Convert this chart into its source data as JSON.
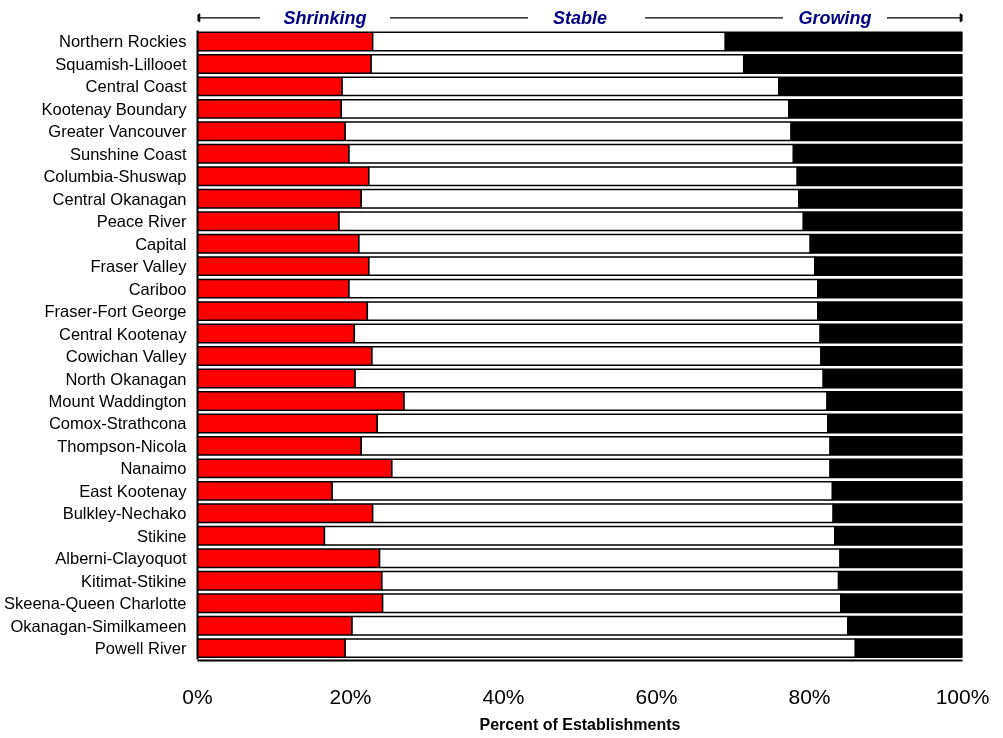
{
  "chart_data": {
    "type": "bar",
    "orientation": "horizontal",
    "stacked": true,
    "xlabel": "Percent of Establishments",
    "categories": [
      "Northern Rockies",
      "Squamish-Lillooet",
      "Central Coast",
      "Kootenay Boundary",
      "Greater Vancouver",
      "Sunshine Coast",
      "Columbia-Shuswap",
      "Central Okanagan",
      "Peace River",
      "Capital",
      "Fraser Valley",
      "Cariboo",
      "Fraser-Fort George",
      "Central Kootenay",
      "Cowichan Valley",
      "North Okanagan",
      "Mount Waddington",
      "Comox-Strathcona",
      "Thompson-Nicola",
      "Nanaimo",
      "East Kootenay",
      "Bulkley-Nechako",
      "Stikine",
      "Alberni-Clayoquot",
      "Kitimat-Stikine",
      "Skeena-Queen Charlotte",
      "Okanagan-Similkameen",
      "Powell River"
    ],
    "series": [
      {
        "name": "Shrinking",
        "color": "#ff0000",
        "values": [
          22.9,
          22.7,
          18.9,
          18.8,
          19.3,
          19.8,
          22.4,
          21.4,
          18.5,
          21.1,
          22.4,
          19.8,
          22.2,
          20.5,
          22.8,
          20.6,
          27.0,
          23.5,
          21.4,
          25.4,
          17.6,
          22.9,
          16.6,
          23.8,
          24.1,
          24.2,
          20.2,
          19.3
        ]
      },
      {
        "name": "Stable",
        "color": "#ffffff",
        "values": [
          46.1,
          48.7,
          57.1,
          58.5,
          58.3,
          58.1,
          56.0,
          57.2,
          60.7,
          59.0,
          58.3,
          61.3,
          58.9,
          60.9,
          58.7,
          61.2,
          55.3,
          58.9,
          61.3,
          57.3,
          65.4,
          60.2,
          66.7,
          60.2,
          59.7,
          59.9,
          64.8,
          66.7
        ]
      },
      {
        "name": "Growing",
        "color": "#000000",
        "values": [
          31.0,
          28.6,
          24.0,
          22.7,
          22.4,
          22.1,
          21.6,
          21.4,
          20.8,
          19.9,
          19.3,
          18.9,
          18.9,
          18.6,
          18.5,
          18.2,
          17.7,
          17.6,
          17.3,
          17.3,
          17.0,
          16.9,
          16.7,
          16.0,
          16.2,
          15.9,
          15.0,
          14.0
        ]
      }
    ],
    "xlim": [
      0,
      100
    ],
    "xticks": [
      {
        "value": 0,
        "label": "0%"
      },
      {
        "value": 20,
        "label": "20%"
      },
      {
        "value": 40,
        "label": "40%"
      },
      {
        "value": 60,
        "label": "60%"
      },
      {
        "value": 80,
        "label": "80%"
      },
      {
        "value": 100,
        "label": "100%"
      }
    ],
    "grid": false,
    "legend": "top"
  }
}
